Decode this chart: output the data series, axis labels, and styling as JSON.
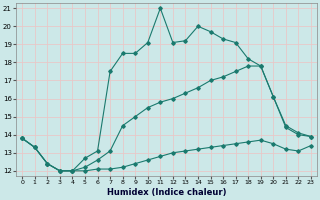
{
  "xlabel": "Humidex (Indice chaleur)",
  "xlim": [
    0,
    23
  ],
  "ylim": [
    12,
    21
  ],
  "yticks": [
    12,
    13,
    14,
    15,
    16,
    17,
    18,
    19,
    20,
    21
  ],
  "xticks": [
    0,
    1,
    2,
    3,
    4,
    5,
    6,
    7,
    8,
    9,
    10,
    11,
    12,
    13,
    14,
    15,
    16,
    17,
    18,
    19,
    20,
    21,
    22,
    23
  ],
  "line_color": "#1a7a6e",
  "bg_color": "#cce8e8",
  "grid_color": "#e8c8c8",
  "curve1_x": [
    0,
    1,
    2,
    3,
    4,
    5,
    6,
    7,
    8,
    9,
    10,
    11,
    12,
    13,
    14,
    15,
    16,
    17,
    18,
    19,
    20,
    21,
    22,
    23
  ],
  "curve1_y": [
    13.8,
    13.3,
    12.4,
    12.0,
    12.0,
    12.7,
    13.1,
    17.5,
    18.5,
    18.5,
    19.1,
    21.0,
    19.1,
    19.2,
    20.0,
    19.7,
    19.3,
    19.1,
    18.2,
    17.8,
    16.1,
    14.4,
    14.0,
    13.9
  ],
  "curve2_x": [
    0,
    1,
    2,
    3,
    4,
    5,
    6,
    7,
    8,
    9,
    10,
    11,
    12,
    13,
    14,
    15,
    16,
    17,
    18,
    19,
    20,
    21,
    22,
    23
  ],
  "curve2_y": [
    13.8,
    13.3,
    12.4,
    12.0,
    12.0,
    12.2,
    12.6,
    13.1,
    14.5,
    15.0,
    15.5,
    15.8,
    16.0,
    16.3,
    16.6,
    17.0,
    17.2,
    17.5,
    17.8,
    17.8,
    16.1,
    14.5,
    14.1,
    13.9
  ],
  "curve3_x": [
    0,
    1,
    2,
    3,
    4,
    5,
    6,
    7,
    8,
    9,
    10,
    11,
    12,
    13,
    14,
    15,
    16,
    17,
    18,
    19,
    20,
    21,
    22,
    23
  ],
  "curve3_y": [
    13.8,
    13.3,
    12.4,
    12.0,
    12.0,
    12.0,
    12.1,
    12.1,
    12.2,
    12.4,
    12.6,
    12.8,
    13.0,
    13.1,
    13.2,
    13.3,
    13.4,
    13.5,
    13.6,
    13.7,
    13.5,
    13.2,
    13.1,
    13.4
  ]
}
